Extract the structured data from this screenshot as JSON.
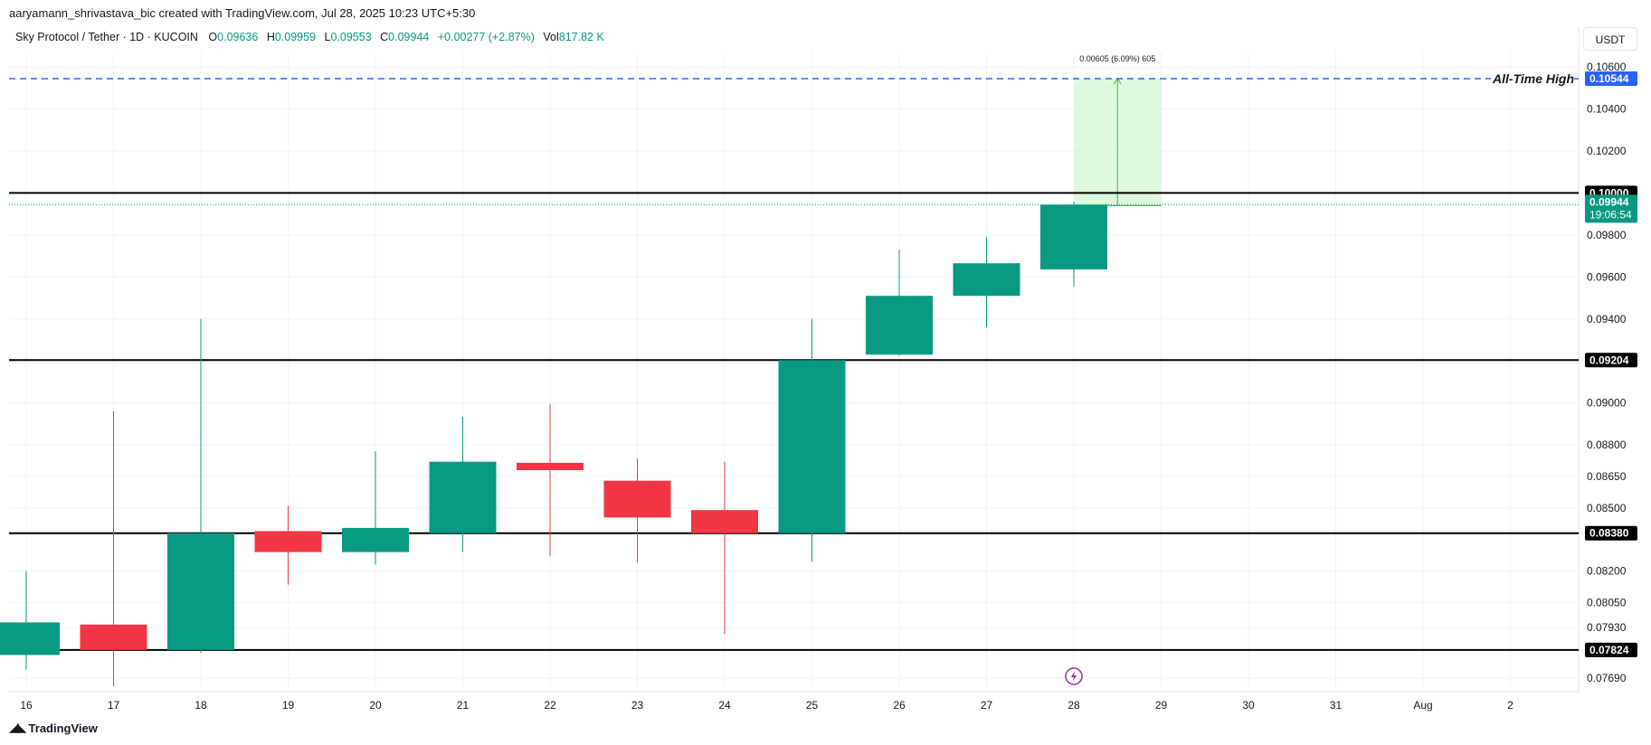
{
  "header": {
    "credit": "aaryamann_shrivastava_bic created with TradingView.com, Jul 28, 2025 10:23 UTC+5:30",
    "symbol": "Sky Protocol / Tether · 1D · KUCOIN",
    "ohlc": {
      "o_label": "O",
      "o": "0.09636",
      "h_label": "H",
      "h": "0.09959",
      "l_label": "L",
      "l": "0.09553",
      "c_label": "C",
      "c": "0.09944",
      "change": "+0.00277 (+2.87%)",
      "vol_label": "Vol",
      "vol": "817.82 K"
    },
    "currency": "USDT"
  },
  "footer": {
    "brand": "TradingView",
    "logo_icon": "tradingview-logo-icon"
  },
  "colors": {
    "up": "#089981",
    "down": "#f23645",
    "ath_line": "#2962ff",
    "level_line": "#000000",
    "measure_fill": "#c8f5c8",
    "measure_line": "#4caf50"
  },
  "chart_data": {
    "type": "candlestick",
    "x_ticks": [
      "16",
      "17",
      "18",
      "19",
      "20",
      "21",
      "22",
      "23",
      "24",
      "25",
      "26",
      "27",
      "28",
      "29",
      "30",
      "31",
      "Aug",
      "2"
    ],
    "y_ticks": [
      "0.10600",
      "0.10400",
      "0.10200",
      "0.09800",
      "0.09600",
      "0.09400",
      "0.09000",
      "0.08800",
      "0.08650",
      "0.08500",
      "0.08200",
      "0.08050",
      "0.07930",
      "0.07690"
    ],
    "ylim": [
      0.0762,
      0.107
    ],
    "grid": true,
    "candles": [
      {
        "date": "16",
        "open": 0.078,
        "high": 0.082,
        "low": 0.0773,
        "close": 0.07955
      },
      {
        "date": "17",
        "open": 0.07945,
        "high": 0.0896,
        "low": 0.0765,
        "close": 0.07824
      },
      {
        "date": "18",
        "open": 0.07824,
        "high": 0.094,
        "low": 0.0781,
        "close": 0.0838
      },
      {
        "date": "19",
        "open": 0.0839,
        "high": 0.0851,
        "low": 0.08135,
        "close": 0.0829
      },
      {
        "date": "20",
        "open": 0.0829,
        "high": 0.0877,
        "low": 0.0823,
        "close": 0.08405
      },
      {
        "date": "21",
        "open": 0.0838,
        "high": 0.08935,
        "low": 0.0829,
        "close": 0.0872
      },
      {
        "date": "22",
        "open": 0.08715,
        "high": 0.08995,
        "low": 0.0827,
        "close": 0.0868
      },
      {
        "date": "23",
        "open": 0.0863,
        "high": 0.08735,
        "low": 0.0824,
        "close": 0.08455
      },
      {
        "date": "24",
        "open": 0.0849,
        "high": 0.0872,
        "low": 0.079,
        "close": 0.0838
      },
      {
        "date": "25",
        "open": 0.0838,
        "high": 0.094,
        "low": 0.08245,
        "close": 0.09204
      },
      {
        "date": "26",
        "open": 0.0923,
        "high": 0.0973,
        "low": 0.09225,
        "close": 0.0951
      },
      {
        "date": "27",
        "open": 0.0951,
        "high": 0.0979,
        "low": 0.0936,
        "close": 0.09665
      },
      {
        "date": "28",
        "open": 0.09636,
        "high": 0.09959,
        "low": 0.09553,
        "close": 0.09944
      }
    ],
    "horizontal_levels": [
      {
        "value": 0.1,
        "label": "0.10000"
      },
      {
        "value": 0.09204,
        "label": "0.09204"
      },
      {
        "value": 0.0838,
        "label": "0.08380"
      },
      {
        "value": 0.07824,
        "label": "0.07824"
      }
    ],
    "all_time_high": {
      "value": 0.10544,
      "label": "0.10544",
      "text": "All-Time High"
    },
    "current_price": {
      "value": 0.09944,
      "label": "0.09944",
      "countdown": "19:06:54"
    },
    "measure": {
      "from_date": "28",
      "to_date": "29",
      "from_value": 0.09939,
      "to_value": 0.10544,
      "text": "0.00605 (6.09%) 605"
    },
    "event_icon": "lightning-icon",
    "event_date": "28"
  }
}
